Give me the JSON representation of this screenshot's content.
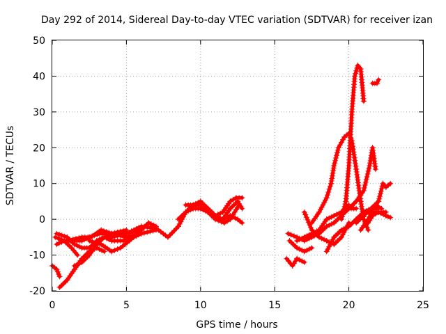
{
  "chart_data": {
    "type": "scatter",
    "title": "Day 292 of 2014, Sidereal Day-to-day VTEC variation (SDTVAR) for receiver izan",
    "xlabel": "GPS time / hours",
    "ylabel": "SDTVAR / TECUs",
    "xlim": [
      0,
      25
    ],
    "ylim": [
      -20,
      50
    ],
    "xticks": [
      "0",
      "5",
      "10",
      "15",
      "20",
      "25"
    ],
    "yticks": [
      "-20",
      "-10",
      "0",
      "10",
      "20",
      "30",
      "40",
      "50"
    ],
    "grid": true,
    "marker": "+",
    "color": "#ff0000",
    "series": [
      {
        "name": "s1",
        "points": [
          [
            0,
            -13
          ],
          [
            0.3,
            -14
          ],
          [
            0.5,
            -16
          ]
        ]
      },
      {
        "name": "s2",
        "points": [
          [
            0.3,
            -4
          ],
          [
            1,
            -5
          ],
          [
            1.5,
            -7
          ],
          [
            2,
            -8
          ],
          [
            2.5,
            -8
          ],
          [
            3,
            -6
          ],
          [
            3.5,
            -5
          ],
          [
            4,
            -5
          ],
          [
            5,
            -4
          ],
          [
            6,
            -2
          ],
          [
            7,
            -2.5
          ],
          [
            7.8,
            -5
          ],
          [
            8.5,
            -2
          ],
          [
            9,
            2
          ],
          [
            9.5,
            4
          ],
          [
            10,
            4
          ],
          [
            10.5,
            3
          ]
        ]
      },
      {
        "name": "s3",
        "points": [
          [
            0.2,
            -5
          ],
          [
            0.8,
            -6
          ],
          [
            1.3,
            -8
          ],
          [
            1.7,
            -10
          ]
        ]
      },
      {
        "name": "s4",
        "points": [
          [
            0.3,
            -7
          ],
          [
            0.8,
            -6
          ],
          [
            1.3,
            -6
          ],
          [
            2,
            -6
          ],
          [
            2.5,
            -5
          ],
          [
            3.2,
            -4
          ],
          [
            4,
            -4
          ],
          [
            5,
            -4
          ],
          [
            6,
            -3
          ]
        ]
      },
      {
        "name": "s5",
        "points": [
          [
            0.5,
            -19
          ],
          [
            1,
            -17
          ],
          [
            1.5,
            -14
          ],
          [
            2,
            -11
          ],
          [
            2.5,
            -9
          ],
          [
            3,
            -8
          ],
          [
            3.5,
            -9
          ]
        ]
      },
      {
        "name": "s6",
        "points": [
          [
            1.5,
            -13
          ],
          [
            2,
            -12
          ],
          [
            2.5,
            -10
          ],
          [
            3,
            -7
          ],
          [
            3.5,
            -5
          ],
          [
            4,
            -4
          ],
          [
            5,
            -3
          ]
        ]
      },
      {
        "name": "s7",
        "points": [
          [
            1,
            -6
          ],
          [
            2,
            -5
          ],
          [
            2.6,
            -5
          ],
          [
            3.3,
            -3
          ],
          [
            4,
            -4
          ],
          [
            5,
            -5
          ],
          [
            6,
            -4
          ],
          [
            7,
            -3
          ]
        ]
      },
      {
        "name": "s8",
        "points": [
          [
            2.5,
            -6
          ],
          [
            3.3,
            -7
          ],
          [
            4,
            -9
          ],
          [
            4.6,
            -8
          ],
          [
            5.2,
            -6
          ],
          [
            6,
            -3
          ],
          [
            6.5,
            -1
          ],
          [
            7,
            -2
          ]
        ]
      },
      {
        "name": "s9",
        "points": [
          [
            3.5,
            -5
          ],
          [
            4,
            -6
          ],
          [
            4.8,
            -6
          ],
          [
            5.5,
            -5
          ],
          [
            6,
            -4
          ]
        ]
      },
      {
        "name": "s10",
        "points": [
          [
            8.5,
            0
          ],
          [
            9,
            2
          ],
          [
            9.5,
            3
          ],
          [
            10,
            3
          ],
          [
            10.5,
            2
          ],
          [
            11,
            0
          ],
          [
            11.5,
            0
          ],
          [
            12,
            1
          ],
          [
            12.5,
            0
          ],
          [
            12.8,
            -1
          ]
        ]
      },
      {
        "name": "s11",
        "points": [
          [
            9,
            4
          ],
          [
            9.5,
            4
          ],
          [
            10,
            5
          ],
          [
            10.5,
            3
          ],
          [
            11,
            1
          ],
          [
            11.5,
            2
          ],
          [
            12,
            5
          ],
          [
            12.4,
            6
          ],
          [
            12.8,
            6
          ]
        ]
      },
      {
        "name": "s12",
        "points": [
          [
            10.5,
            3
          ],
          [
            11,
            1
          ],
          [
            11.5,
            0
          ],
          [
            12,
            3
          ],
          [
            12.5,
            5
          ],
          [
            12.8,
            3
          ]
        ]
      },
      {
        "name": "s13",
        "points": [
          [
            11,
            0
          ],
          [
            11.6,
            -1
          ],
          [
            12,
            0
          ],
          [
            12.6,
            4
          ]
        ]
      },
      {
        "name": "s14",
        "points": [
          [
            15.8,
            -11
          ],
          [
            16.2,
            -13
          ],
          [
            16.5,
            -11
          ],
          [
            17,
            -12
          ]
        ]
      },
      {
        "name": "s15",
        "points": [
          [
            15.9,
            -4
          ],
          [
            16.5,
            -5
          ],
          [
            17,
            -6
          ],
          [
            17.5,
            -5
          ],
          [
            18,
            -4
          ],
          [
            18.5,
            -2
          ],
          [
            19,
            -1
          ],
          [
            19.5,
            1
          ],
          [
            20,
            3
          ],
          [
            20.5,
            3
          ]
        ]
      },
      {
        "name": "s16",
        "points": [
          [
            16,
            -6
          ],
          [
            16.5,
            -8
          ],
          [
            17,
            -9
          ],
          [
            17.5,
            -8
          ]
        ]
      },
      {
        "name": "s17",
        "points": [
          [
            16.5,
            -6
          ],
          [
            17,
            -5
          ],
          [
            17.5,
            -4
          ],
          [
            18,
            -3
          ],
          [
            18.5,
            0
          ],
          [
            19,
            1
          ],
          [
            19.5,
            2
          ],
          [
            20,
            4
          ]
        ]
      },
      {
        "name": "s18",
        "points": [
          [
            17,
            2
          ],
          [
            17.5,
            -3
          ],
          [
            18,
            -5
          ],
          [
            18.5,
            -6
          ],
          [
            19,
            -7
          ],
          [
            19.5,
            -5
          ],
          [
            20,
            -1
          ]
        ]
      },
      {
        "name": "s19",
        "points": [
          [
            17.5,
            -1
          ],
          [
            18,
            2
          ],
          [
            18.5,
            6
          ],
          [
            18.8,
            10
          ],
          [
            19,
            15
          ]
        ]
      },
      {
        "name": "s20",
        "points": [
          [
            18.5,
            -9
          ],
          [
            19,
            -5
          ],
          [
            19.5,
            -3
          ],
          [
            20,
            -2
          ],
          [
            20.5,
            0
          ],
          [
            21,
            2
          ],
          [
            21.5,
            3
          ],
          [
            22,
            3
          ]
        ]
      },
      {
        "name": "s21",
        "points": [
          [
            19,
            15
          ],
          [
            19.3,
            20
          ],
          [
            19.7,
            23
          ],
          [
            20,
            24
          ],
          [
            20.2,
            22
          ],
          [
            20.5,
            14
          ],
          [
            20.8,
            5
          ],
          [
            21,
            0
          ],
          [
            21.3,
            -3
          ]
        ]
      },
      {
        "name": "s22",
        "points": [
          [
            19.5,
            0
          ],
          [
            19.8,
            5
          ],
          [
            20,
            15
          ],
          [
            20.2,
            30
          ],
          [
            20.4,
            40
          ],
          [
            20.6,
            43
          ],
          [
            20.8,
            42
          ],
          [
            21,
            33
          ]
        ]
      },
      {
        "name": "s23",
        "points": [
          [
            20,
            3
          ],
          [
            20.5,
            5
          ],
          [
            21,
            8
          ],
          [
            21.4,
            15
          ],
          [
            21.6,
            20
          ],
          [
            21.8,
            14
          ]
        ]
      },
      {
        "name": "s24",
        "points": [
          [
            20.5,
            -1
          ],
          [
            21,
            1
          ],
          [
            21.5,
            3
          ],
          [
            22,
            5
          ],
          [
            22.3,
            10
          ],
          [
            22.5,
            9
          ],
          [
            22.8,
            10
          ]
        ]
      },
      {
        "name": "s25",
        "points": [
          [
            21,
            2
          ],
          [
            21.5,
            2
          ],
          [
            22,
            2
          ],
          [
            22.5,
            1
          ],
          [
            22.8,
            0.5
          ]
        ]
      },
      {
        "name": "s26",
        "points": [
          [
            20.8,
            -3
          ],
          [
            21.3,
            0
          ],
          [
            21.8,
            4
          ],
          [
            22.2,
            3
          ]
        ]
      },
      {
        "name": "s27",
        "points": [
          [
            21.6,
            38
          ],
          [
            21.9,
            38
          ],
          [
            22,
            39
          ]
        ]
      },
      {
        "name": "s28",
        "points": [
          [
            21.3,
            -1
          ],
          [
            21.6,
            1
          ],
          [
            22,
            2
          ],
          [
            22.5,
            2
          ]
        ]
      }
    ]
  }
}
